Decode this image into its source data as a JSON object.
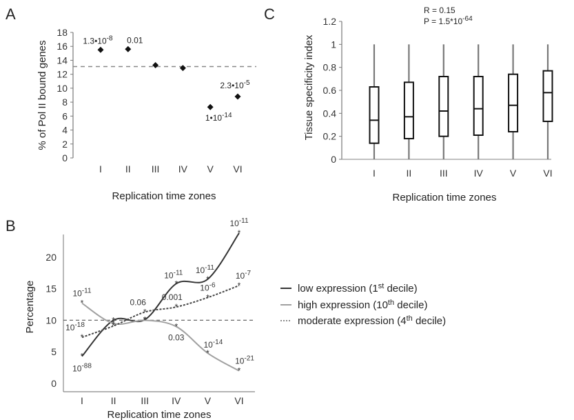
{
  "chart_data": [
    {
      "panel": "A",
      "type": "scatter",
      "categories": [
        "I",
        "II",
        "III",
        "IV",
        "V",
        "VI"
      ],
      "values": [
        15.5,
        15.6,
        13.3,
        12.9,
        7.3,
        8.8
      ],
      "ylabel": "% of Pol II bound genes",
      "xlabel": "Replication time zones",
      "ylim": [
        0,
        18
      ],
      "yticks": [
        0,
        2,
        4,
        6,
        8,
        10,
        12,
        14,
        16,
        18
      ],
      "reference_line": 13.1,
      "annotations": [
        {
          "index": 0,
          "text": "1.3•10",
          "exp": "-8"
        },
        {
          "index": 1,
          "text": "0.01",
          "exp": ""
        },
        {
          "index": 4,
          "text": "1•10",
          "exp": "-14"
        },
        {
          "index": 5,
          "text": "2.3•10",
          "exp": "-5"
        }
      ]
    },
    {
      "panel": "C",
      "type": "box",
      "categories": [
        "I",
        "II",
        "III",
        "IV",
        "V",
        "VI"
      ],
      "boxes": [
        {
          "min": 0,
          "q1": 0.14,
          "median": 0.34,
          "q3": 0.63,
          "max": 1.0
        },
        {
          "min": 0,
          "q1": 0.18,
          "median": 0.37,
          "q3": 0.67,
          "max": 1.0
        },
        {
          "min": 0,
          "q1": 0.2,
          "median": 0.42,
          "q3": 0.72,
          "max": 1.0
        },
        {
          "min": 0,
          "q1": 0.21,
          "median": 0.44,
          "q3": 0.72,
          "max": 1.0
        },
        {
          "min": 0,
          "q1": 0.24,
          "median": 0.47,
          "q3": 0.74,
          "max": 1.0
        },
        {
          "min": 0,
          "q1": 0.33,
          "median": 0.58,
          "q3": 0.77,
          "max": 1.0
        }
      ],
      "ylabel": "Tissue specificity index",
      "xlabel": "Replication time zones",
      "ylim": [
        0,
        1.2
      ],
      "yticks": [
        "0",
        "0.2",
        "0.4",
        "0.6",
        "0.8",
        "1",
        "1.2"
      ],
      "stats": {
        "r": "R = 0.15",
        "p_text": "P = 1.5*10",
        "p_exp": "-64"
      }
    },
    {
      "panel": "B",
      "type": "line",
      "categories": [
        "I",
        "II",
        "III",
        "IV",
        "V",
        "VI"
      ],
      "series": [
        {
          "name": "low expression (1st decile)",
          "name_parts": [
            "low expression (1",
            "st",
            " decile)"
          ],
          "color": "#333333",
          "dash": "none",
          "values": [
            4.3,
            10.0,
            10.1,
            15.8,
            16.5,
            23.8
          ],
          "labels": [
            [
              "10",
              "-88"
            ],
            [
              "",
              ""
            ],
            [
              "",
              ""
            ],
            [
              "10",
              "-11"
            ],
            [
              "10",
              "-11"
            ],
            [
              "10",
              "-11"
            ]
          ]
        },
        {
          "name": "high expression (10th decile)",
          "name_parts": [
            "high expression (10",
            "th",
            " decile)"
          ],
          "color": "#a0a0a0",
          "dash": "none",
          "values": [
            12.7,
            9.5,
            10.0,
            9.0,
            4.8,
            2.0
          ],
          "labels": [
            [
              "10",
              "-11"
            ],
            [
              "",
              ""
            ],
            [
              "",
              ""
            ],
            [
              "0.03",
              ""
            ],
            [
              "10",
              "-14"
            ],
            [
              "10",
              "-21"
            ]
          ]
        },
        {
          "name": "moderate expression (4th decile)",
          "name_parts": [
            "moderate expression (4",
            "th",
            " decile)"
          ],
          "color": "#444444",
          "dash": "3,2",
          "values": [
            7.3,
            9.1,
            11.3,
            12.1,
            13.6,
            15.5
          ],
          "labels": [
            [
              "10",
              "-18"
            ],
            [
              "",
              ""
            ],
            [
              "0.06",
              ""
            ],
            [
              "0.001",
              ""
            ],
            [
              "10",
              "-6"
            ],
            [
              "10",
              "-7"
            ]
          ]
        }
      ],
      "ylabel": "Percentage",
      "xlabel": "Replication time zones",
      "ylim": [
        0,
        25
      ],
      "yticks": [
        0,
        5,
        10,
        15,
        20
      ],
      "reference_line": 10
    }
  ],
  "panel_letters": {
    "a": "A",
    "b": "B",
    "c": "C"
  }
}
